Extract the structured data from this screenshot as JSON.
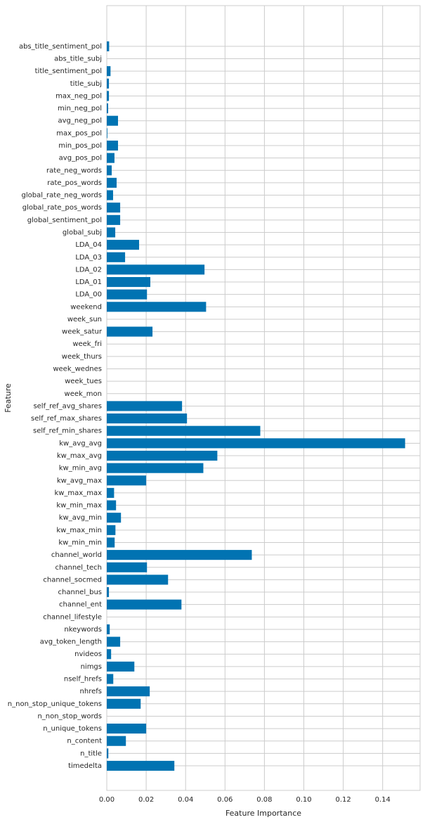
{
  "chart_data": {
    "type": "barh",
    "xlabel": "Feature Importance",
    "ylabel": "Feature",
    "color": "#0173b2",
    "categories": [
      "timedelta",
      "n_title",
      "n_content",
      "n_unique_tokens",
      "n_non_stop_words",
      "n_non_stop_unique_tokens",
      "nhrefs",
      "nself_hrefs",
      "nimgs",
      "nvideos",
      "avg_token_length",
      "nkeywords",
      "channel_lifestyle",
      "channel_ent",
      "channel_bus",
      "channel_socmed",
      "channel_tech",
      "channel_world",
      "kw_min_min",
      "kw_max_min",
      "kw_avg_min",
      "kw_min_max",
      "kw_max_max",
      "kw_avg_max",
      "kw_min_avg",
      "kw_max_avg",
      "kw_avg_avg",
      "self_ref_min_shares",
      "self_ref_max_shares",
      "self_ref_avg_shares",
      "week_mon",
      "week_tues",
      "week_wednes",
      "week_thurs",
      "week_fri",
      "week_satur",
      "week_sun",
      "weekend",
      "LDA_00",
      "LDA_01",
      "LDA_02",
      "LDA_03",
      "LDA_04",
      "global_subj",
      "global_sentiment_pol",
      "global_rate_pos_words",
      "global_rate_neg_words",
      "rate_pos_words",
      "rate_neg_words",
      "avg_pos_pol",
      "min_pos_pol",
      "max_pos_pol",
      "avg_neg_pol",
      "min_neg_pol",
      "max_neg_pol",
      "title_subj",
      "title_sentiment_pol",
      "abs_title_subj",
      "abs_title_sentiment_pol"
    ],
    "values": [
      0.0343,
      0.0008,
      0.0097,
      0.02,
      0,
      0.0172,
      0.0218,
      0.0033,
      0.014,
      0.0022,
      0.0068,
      0.0015,
      0,
      0.0379,
      0.0011,
      0.0311,
      0.0204,
      0.0736,
      0.004,
      0.0044,
      0.0072,
      0.0047,
      0.0037,
      0.02,
      0.049,
      0.0561,
      0.1514,
      0.0779,
      0.0407,
      0.0382,
      0,
      0,
      0,
      0,
      0,
      0.0232,
      0,
      0.0504,
      0.0204,
      0.0221,
      0.0496,
      0.0093,
      0.0164,
      0.0043,
      0.0068,
      0.0068,
      0.0032,
      0.005,
      0.0025,
      0.0039,
      0.0057,
      0.0003,
      0.0057,
      0.0007,
      0.0011,
      0.0011,
      0.0019,
      0,
      0.0012
    ],
    "xlim": [
      0,
      0.159
    ],
    "xticks": [
      {
        "value": 0,
        "label": "0.00"
      },
      {
        "value": 0.02,
        "label": "0.02"
      },
      {
        "value": 0.04,
        "label": "0.04"
      },
      {
        "value": 0.06,
        "label": "0.06"
      },
      {
        "value": 0.08,
        "label": "0.08"
      },
      {
        "value": 0.1,
        "label": "0.10"
      },
      {
        "value": 0.12,
        "label": "0.12"
      },
      {
        "value": 0.14,
        "label": "0.14"
      }
    ],
    "grid": true
  }
}
